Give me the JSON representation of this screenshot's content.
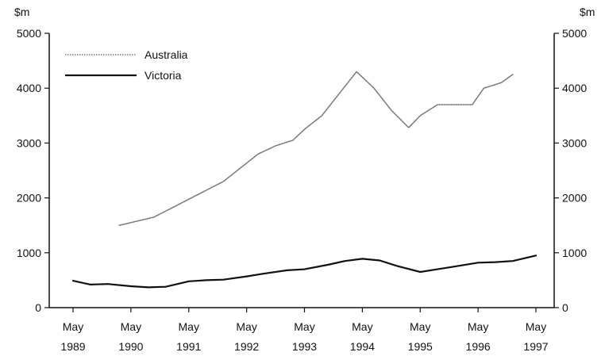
{
  "chart_data": {
    "type": "line",
    "title": "",
    "xlabel": "",
    "ylabel": "$m",
    "ylabel_right": "$m",
    "ylim": [
      0,
      5000
    ],
    "y_ticks": [
      0,
      1000,
      2000,
      3000,
      4000,
      5000
    ],
    "x_tick_labels": [
      {
        "month": "May",
        "year": "1989"
      },
      {
        "month": "May",
        "year": "1990"
      },
      {
        "month": "May",
        "year": "1991"
      },
      {
        "month": "May",
        "year": "1992"
      },
      {
        "month": "May",
        "year": "1993"
      },
      {
        "month": "May",
        "year": "1994"
      },
      {
        "month": "May",
        "year": "1995"
      },
      {
        "month": "May",
        "year": "1996"
      },
      {
        "month": "May",
        "year": "1997"
      }
    ],
    "x_range": [
      1989,
      1997
    ],
    "grid": false,
    "legend_position": "top-left",
    "series": [
      {
        "name": "Australia",
        "color": "#777777",
        "style": "dotted",
        "x": [
          1989.8,
          1990.2,
          1990.4,
          1991.6,
          1991.9,
          1992.2,
          1992.5,
          1992.8,
          1993.0,
          1993.3,
          1993.6,
          1993.9,
          1994.2,
          1994.5,
          1994.8,
          1995.0,
          1995.3,
          1995.6,
          1995.9,
          1996.1,
          1996.4,
          1996.6
        ],
        "values": [
          1500,
          1600,
          1650,
          2300,
          2550,
          2800,
          2950,
          3050,
          3250,
          3500,
          3900,
          4300,
          4000,
          3600,
          3280,
          3500,
          3700,
          3700,
          3700,
          4000,
          4100,
          4250
        ]
      },
      {
        "name": "Victoria",
        "color": "#111111",
        "style": "solid",
        "x": [
          1989,
          1989.3,
          1989.6,
          1990.0,
          1990.3,
          1990.6,
          1991.0,
          1991.3,
          1991.6,
          1992.0,
          1992.3,
          1992.7,
          1993.0,
          1993.4,
          1993.7,
          1994.0,
          1994.3,
          1994.6,
          1995.0,
          1995.3,
          1995.6,
          1996.0,
          1996.3,
          1996.6,
          1997.0
        ],
        "values": [
          490,
          420,
          430,
          390,
          370,
          380,
          480,
          500,
          510,
          570,
          620,
          680,
          700,
          780,
          850,
          890,
          860,
          760,
          650,
          700,
          750,
          820,
          830,
          850,
          950
        ]
      }
    ]
  }
}
